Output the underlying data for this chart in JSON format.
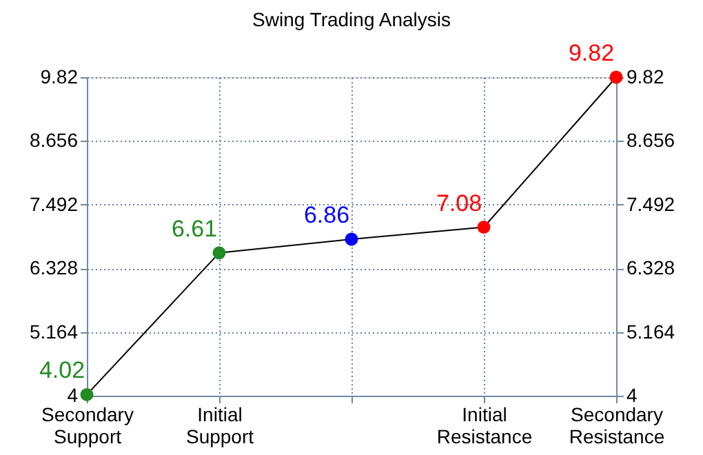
{
  "chart_data": {
    "type": "line",
    "title": "Swing Trading Analysis",
    "categories": [
      "Secondary Support",
      "Initial Support",
      null,
      "Initial Resistance",
      "Secondary Resistance"
    ],
    "series": [
      {
        "color": "#000000",
        "values": [
          4.02,
          6.61,
          6.86,
          7.08,
          9.82
        ]
      }
    ],
    "colors": [
      "#228b22",
      "#228b22",
      "#0000ff",
      "#ff0000",
      "#ff0000"
    ],
    "data_labels": true,
    "marker": "circle",
    "line_style": "solid",
    "grid": true,
    "ylim": [
      4,
      9.82
    ],
    "yticks": [
      4,
      5.164,
      6.328,
      7.492,
      8.656,
      9.82
    ],
    "y2lim": [
      4,
      9.82
    ],
    "y2ticks": [
      4,
      5.164,
      6.328,
      7.492,
      8.656,
      9.82
    ]
  }
}
